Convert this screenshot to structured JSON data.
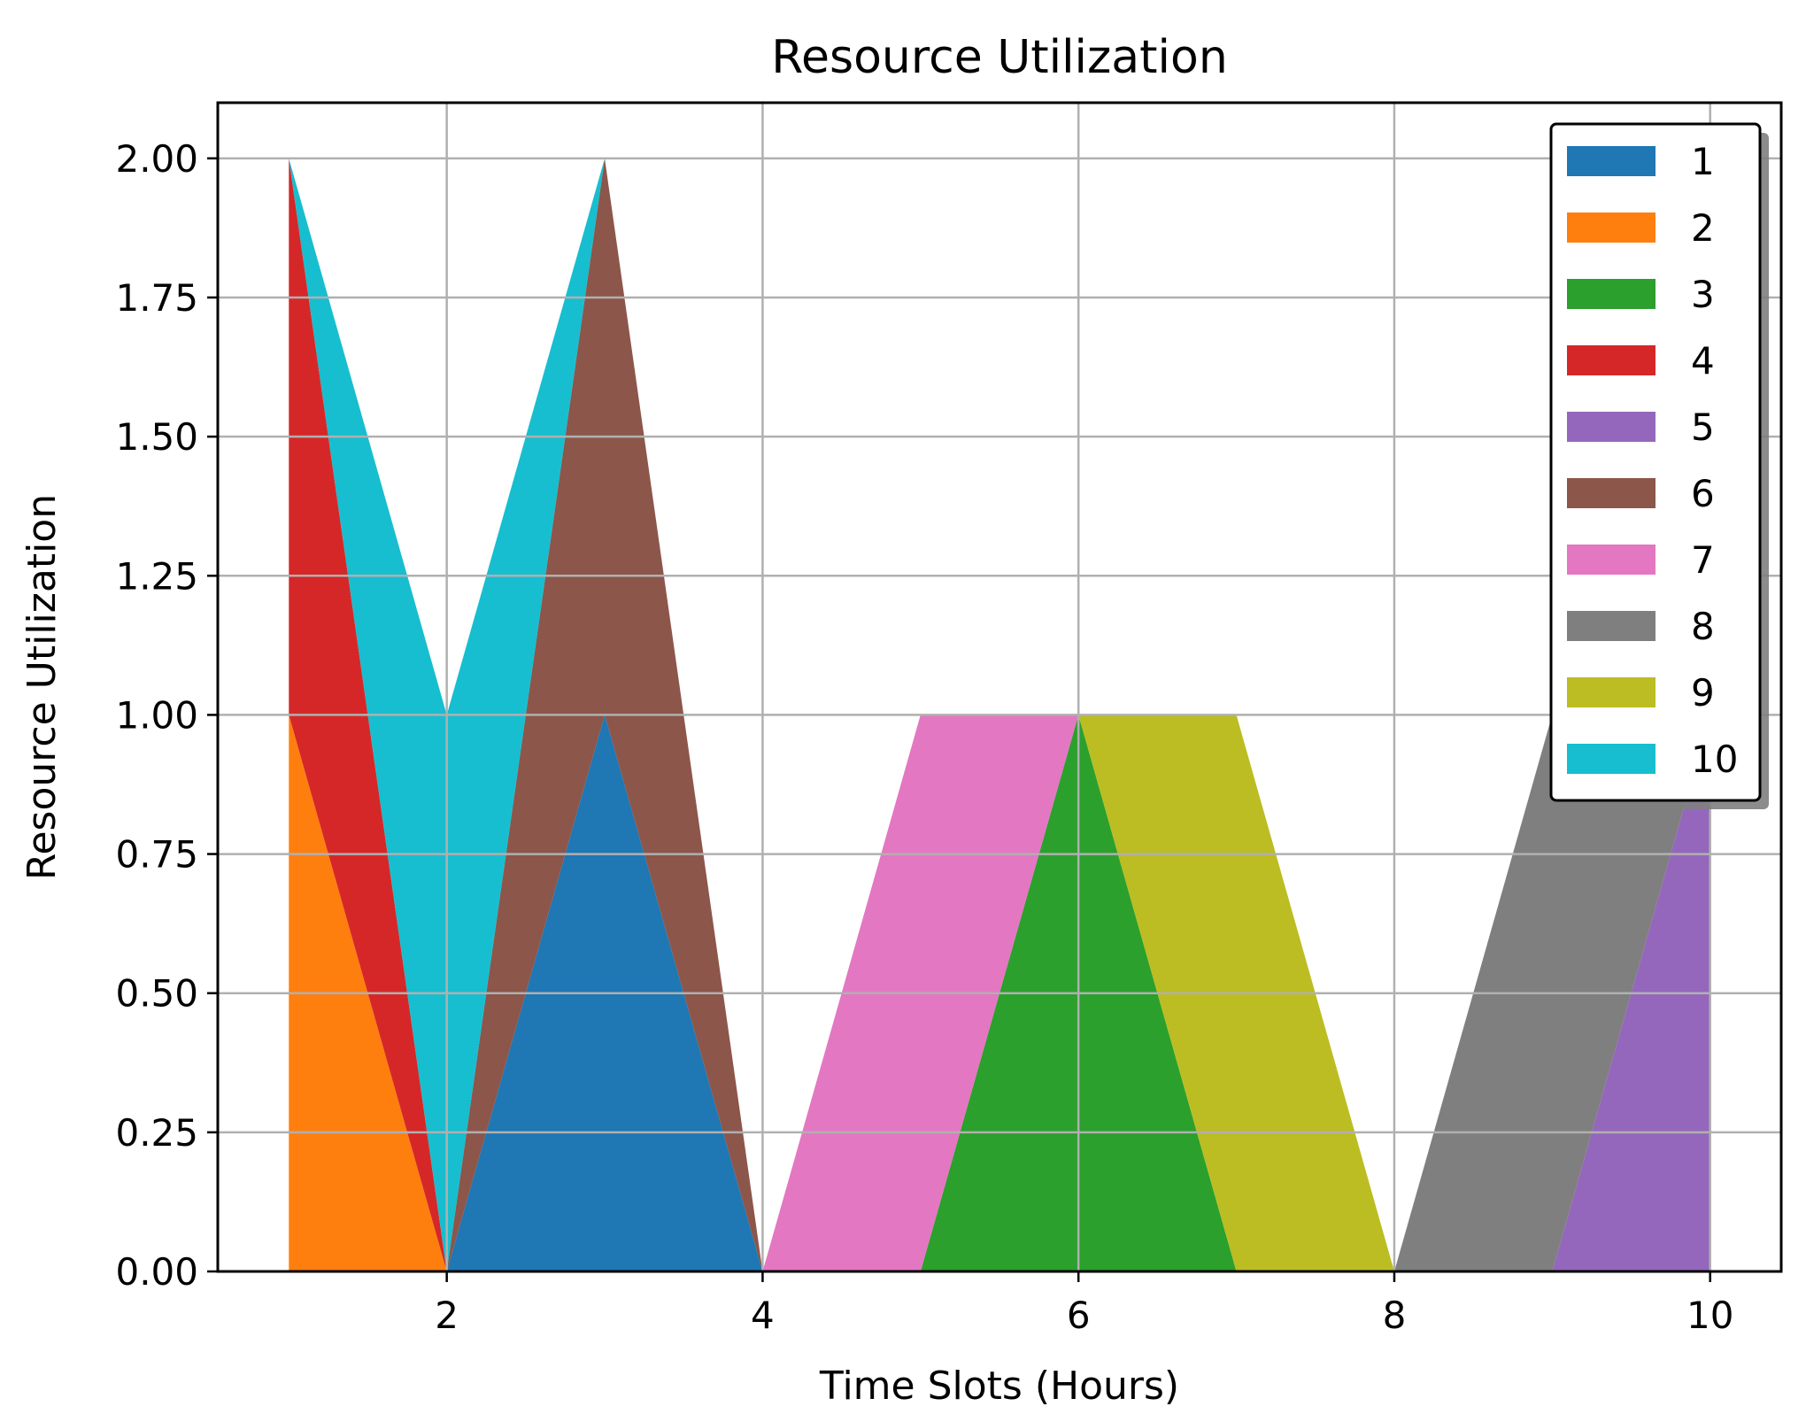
{
  "chart_data": {
    "type": "area",
    "stacked": true,
    "title": "Resource Utilization",
    "xlabel": "Time Slots (Hours)",
    "ylabel": "Resource Utilization",
    "x": [
      1,
      2,
      3,
      4,
      5,
      6,
      7,
      8,
      9,
      10
    ],
    "xlim": [
      0.55,
      10.45
    ],
    "ylim": [
      0,
      2.1
    ],
    "xticks": [
      2,
      4,
      6,
      8,
      10
    ],
    "yticks": [
      0,
      0.25,
      0.5,
      0.75,
      1,
      1.25,
      1.5,
      1.75,
      2
    ],
    "ytick_labels": [
      "0.00",
      "0.25",
      "0.50",
      "0.75",
      "1.00",
      "1.25",
      "1.50",
      "1.75",
      "2.00"
    ],
    "grid": true,
    "legend": "top-right",
    "series": [
      {
        "name": "1",
        "color": "#1f77b4",
        "values": [
          0,
          0,
          1,
          0,
          0,
          0,
          0,
          0,
          0,
          0
        ]
      },
      {
        "name": "2",
        "color": "#ff7f0e",
        "values": [
          1,
          0,
          0,
          0,
          0,
          0,
          0,
          0,
          0,
          0
        ]
      },
      {
        "name": "3",
        "color": "#2ca02c",
        "values": [
          0,
          0,
          0,
          0,
          0,
          1,
          0,
          0,
          0,
          0
        ]
      },
      {
        "name": "4",
        "color": "#d62728",
        "values": [
          1,
          0,
          0,
          0,
          0,
          0,
          0,
          0,
          0,
          0
        ]
      },
      {
        "name": "5",
        "color": "#9467bd",
        "values": [
          0,
          0,
          0,
          0,
          0,
          0,
          0,
          0,
          0,
          1
        ]
      },
      {
        "name": "6",
        "color": "#8c564b",
        "values": [
          0,
          0,
          1,
          0,
          0,
          0,
          0,
          0,
          0,
          0
        ]
      },
      {
        "name": "7",
        "color": "#e377c2",
        "values": [
          0,
          0,
          0,
          0,
          1,
          0,
          0,
          0,
          0,
          0
        ]
      },
      {
        "name": "8",
        "color": "#7f7f7f",
        "values": [
          0,
          0,
          0,
          0,
          0,
          0,
          0,
          0,
          1,
          0
        ]
      },
      {
        "name": "9",
        "color": "#bcbd22",
        "values": [
          0,
          0,
          0,
          0,
          0,
          0,
          1,
          0,
          0,
          0
        ]
      },
      {
        "name": "10",
        "color": "#17becf",
        "values": [
          0,
          1,
          0,
          0,
          0,
          0,
          0,
          0,
          0,
          0
        ]
      }
    ]
  }
}
